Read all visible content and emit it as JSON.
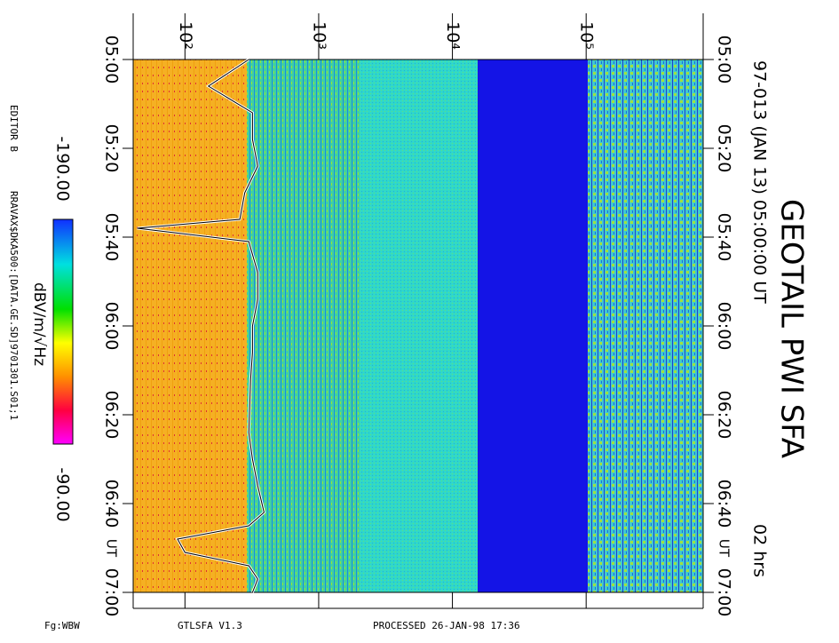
{
  "chart_data": {
    "type": "spectrogram",
    "title": "GEOTAIL PWI SFA",
    "subtitle": "97-013 (JAN 13) 05:00:00 UT",
    "duration": "02 hrs",
    "editor": "EDITOR B",
    "file": "RRAVAX$DKA500:[DATA.GE.SD]9701301.S01;1",
    "footer_left": "Fg:WBW",
    "footer_mid": "GTLSFA V1.3",
    "footer_right": "PROCESSED 26-JAN-98 17:36",
    "colorbar_label": "dBV/m/√Hz",
    "zlim": [
      {
        "value": -190,
        "label": "-190.00"
      },
      {
        "value": -90,
        "label": "-90.00"
      }
    ],
    "xscale": "log",
    "xlim": [
      41,
      750000
    ],
    "xticks": [
      {
        "value": 100,
        "label": "10²"
      },
      {
        "value": 1000,
        "label": "10³"
      },
      {
        "value": 10000,
        "label": "10⁴"
      },
      {
        "value": 100000,
        "label": "10⁵"
      }
    ],
    "ylim": [
      "05:00",
      "07:00"
    ],
    "yticks": [
      "05:00",
      "05:20",
      "05:40",
      "06:00",
      "06:20",
      "06:40",
      "07:00"
    ],
    "y_unit": "UT",
    "trace": {
      "color": "#000000",
      "times": [
        "05:00",
        "05:06",
        "05:12",
        "05:18",
        "05:24",
        "05:30",
        "05:36",
        "05:38",
        "05:41",
        "05:48",
        "05:54",
        "06:00",
        "06:06",
        "06:12",
        "06:18",
        "06:24",
        "06:30",
        "06:36",
        "06:42",
        "06:45",
        "06:48",
        "06:51",
        "06:54",
        "06:57",
        "07:00"
      ],
      "values": [
        300,
        150,
        320,
        320,
        350,
        280,
        257,
        44,
        300,
        350,
        350,
        320,
        320,
        310,
        305,
        300,
        320,
        350,
        390,
        300,
        88,
        100,
        300,
        350,
        320
      ]
    }
  }
}
